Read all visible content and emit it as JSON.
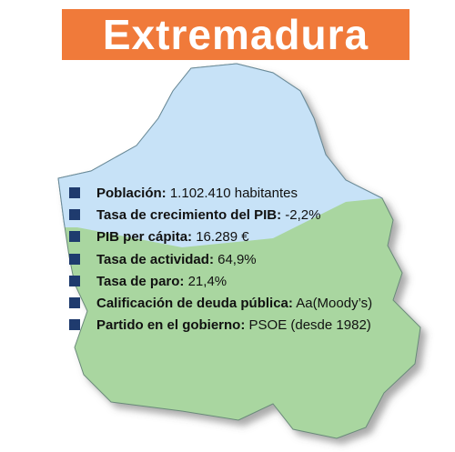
{
  "header": {
    "title": "Extremadura"
  },
  "items": [
    {
      "label": "Población:",
      "value": "1.102.410 habitantes"
    },
    {
      "label": "Tasa de crecimiento del PIB:",
      "value": "-2,2%"
    },
    {
      "label": "PIB per cápita:",
      "value": "16.289 €"
    },
    {
      "label": "Tasa de actividad:",
      "value": "64,9%"
    },
    {
      "label": "Tasa de paro:",
      "value": "21,4%"
    },
    {
      "label": "Calificación de deuda pública:",
      "value": "Aa(Moody’s)"
    },
    {
      "label": "Partido en el gobierno:",
      "value": "PSOE (desde 1982)"
    }
  ]
}
